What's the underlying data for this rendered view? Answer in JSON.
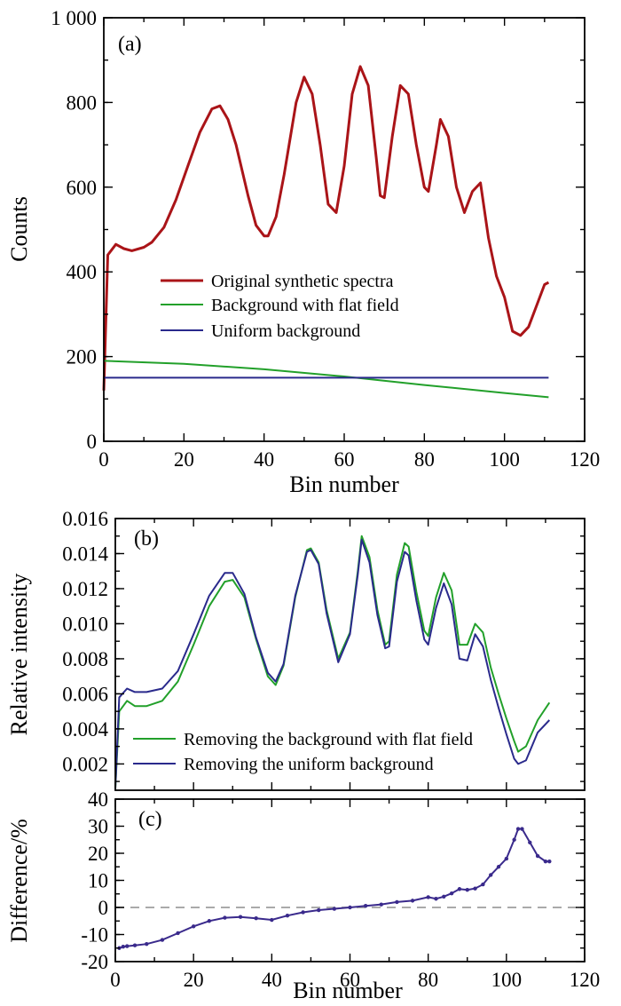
{
  "chart_data": [
    {
      "panel_label": "(a)",
      "type": "line",
      "xlabel": "Bin number",
      "ylabel": "Counts",
      "xlim": [
        0,
        120
      ],
      "ylim": [
        0,
        1000
      ],
      "xticks": [
        0,
        20,
        40,
        60,
        80,
        100,
        120
      ],
      "xtick_labels": [
        "0",
        "20",
        "40",
        "60",
        "80",
        "100",
        "120"
      ],
      "yticks": [
        0,
        200,
        400,
        600,
        800,
        1000
      ],
      "ytick_labels": [
        "0",
        "200",
        "400",
        "600",
        "800",
        "1 000"
      ],
      "legend_position": "middle-left",
      "series": [
        {
          "name": "Original synthetic spectra",
          "color": "#aa1418",
          "x": [
            0,
            1,
            3,
            5,
            7,
            10,
            12,
            15,
            18,
            21,
            24,
            27,
            29,
            31,
            33,
            36,
            38,
            40,
            41,
            43,
            45,
            48,
            50,
            52,
            54,
            56,
            58,
            60,
            62,
            64,
            66,
            68,
            69,
            70,
            72,
            74,
            76,
            78,
            80,
            81,
            83,
            84,
            86,
            88,
            90,
            92,
            94,
            96,
            98,
            100,
            102,
            104,
            106,
            108,
            110,
            111
          ],
          "y": [
            120,
            440,
            465,
            455,
            450,
            458,
            470,
            505,
            570,
            650,
            730,
            785,
            792,
            760,
            700,
            580,
            510,
            485,
            485,
            530,
            630,
            800,
            860,
            820,
            700,
            560,
            540,
            650,
            820,
            885,
            840,
            670,
            580,
            575,
            720,
            840,
            820,
            700,
            600,
            590,
            700,
            760,
            720,
            600,
            540,
            590,
            610,
            480,
            390,
            340,
            260,
            250,
            270,
            320,
            370,
            375
          ]
        },
        {
          "name": "Background with flat field",
          "color": "#22a02a",
          "x": [
            0,
            20,
            40,
            60,
            80,
            100,
            111
          ],
          "y": [
            190,
            183,
            170,
            153,
            133,
            114,
            104
          ]
        },
        {
          "name": "Uniform background",
          "color": "#2a2a8c",
          "x": [
            0,
            111
          ],
          "y": [
            150,
            150
          ]
        }
      ]
    },
    {
      "panel_label": "(b)",
      "type": "line",
      "xlabel": "",
      "ylabel": "Relative intensity",
      "xlim": [
        0,
        120
      ],
      "ylim": [
        0.0005,
        0.016
      ],
      "yticks": [
        0.002,
        0.004,
        0.006,
        0.008,
        0.01,
        0.012,
        0.014,
        0.016
      ],
      "ytick_labels": [
        "0.002",
        "0.004",
        "0.006",
        "0.008",
        "0.010",
        "0.012",
        "0.014",
        "0.016"
      ],
      "legend_position": "bottom-left",
      "series": [
        {
          "name": "Removing the background with flat field",
          "color": "#22a02a",
          "x": [
            0,
            1,
            3,
            5,
            8,
            12,
            16,
            20,
            24,
            28,
            30,
            33,
            36,
            39,
            41,
            43,
            46,
            49,
            50,
            52,
            54,
            57,
            60,
            62,
            63,
            65,
            67,
            69,
            70,
            72,
            74,
            75,
            77,
            79,
            80,
            82,
            84,
            86,
            88,
            90,
            92,
            94,
            96,
            98,
            100,
            102,
            103,
            105,
            108,
            111
          ],
          "y": [
            0.0006,
            0.005,
            0.0056,
            0.0053,
            0.0053,
            0.0056,
            0.0067,
            0.0088,
            0.011,
            0.0124,
            0.0125,
            0.0115,
            0.0091,
            0.007,
            0.0065,
            0.0076,
            0.0115,
            0.0142,
            0.0143,
            0.0135,
            0.0108,
            0.008,
            0.0095,
            0.013,
            0.015,
            0.0138,
            0.0108,
            0.0088,
            0.009,
            0.0128,
            0.0146,
            0.0144,
            0.0118,
            0.0096,
            0.0093,
            0.0115,
            0.0129,
            0.0119,
            0.0088,
            0.0088,
            0.01,
            0.0095,
            0.0075,
            0.006,
            0.0046,
            0.0033,
            0.0027,
            0.003,
            0.0045,
            0.0055
          ]
        },
        {
          "name": "Removing the uniform background",
          "color": "#2a2a8c",
          "x": [
            0,
            1,
            3,
            5,
            8,
            12,
            16,
            20,
            24,
            28,
            30,
            33,
            36,
            39,
            41,
            43,
            46,
            49,
            50,
            52,
            54,
            57,
            60,
            62,
            63,
            65,
            67,
            69,
            70,
            72,
            74,
            75,
            77,
            79,
            80,
            82,
            84,
            86,
            88,
            90,
            92,
            94,
            96,
            98,
            100,
            102,
            103,
            105,
            108,
            111
          ],
          "y": [
            0.0006,
            0.0058,
            0.0063,
            0.0061,
            0.0061,
            0.0063,
            0.0073,
            0.0094,
            0.0116,
            0.0129,
            0.0129,
            0.0117,
            0.0092,
            0.0072,
            0.0067,
            0.0077,
            0.0116,
            0.0141,
            0.0142,
            0.0134,
            0.0106,
            0.0078,
            0.0094,
            0.0128,
            0.0148,
            0.0135,
            0.0105,
            0.0086,
            0.0087,
            0.0124,
            0.0141,
            0.0139,
            0.0113,
            0.0091,
            0.0088,
            0.0109,
            0.0123,
            0.0111,
            0.008,
            0.0079,
            0.0094,
            0.0087,
            0.0068,
            0.0052,
            0.0037,
            0.0023,
            0.002,
            0.0022,
            0.0038,
            0.0045
          ]
        }
      ]
    },
    {
      "panel_label": "(c)",
      "type": "line",
      "xlabel": "Bin number",
      "ylabel": "Difference/%",
      "xlim": [
        0,
        120
      ],
      "ylim": [
        -20,
        40
      ],
      "xticks": [
        0,
        20,
        40,
        60,
        80,
        100,
        120
      ],
      "xtick_labels": [
        "0",
        "20",
        "40",
        "60",
        "80",
        "100",
        "120"
      ],
      "yticks": [
        -20,
        -10,
        0,
        10,
        20,
        30,
        40
      ],
      "ytick_labels": [
        "-20",
        "-10",
        "0",
        "10",
        "20",
        "30",
        "40"
      ],
      "zero_line": {
        "y": 0,
        "style": "dashed",
        "color": "#aaaaaa"
      },
      "series": [
        {
          "name": "",
          "color": "#3a2a8c",
          "marker": "dot",
          "x": [
            1,
            2,
            3,
            5,
            8,
            12,
            16,
            20,
            24,
            28,
            32,
            36,
            40,
            44,
            48,
            52,
            56,
            60,
            64,
            68,
            72,
            76,
            80,
            82,
            84,
            86,
            88,
            90,
            92,
            94,
            96,
            98,
            100,
            102,
            103,
            104,
            106,
            108,
            110,
            111
          ],
          "y": [
            -15,
            -14.5,
            -14.3,
            -14,
            -13.5,
            -12,
            -9.5,
            -7,
            -5,
            -3.8,
            -3.5,
            -4,
            -4.6,
            -3,
            -1.8,
            -1,
            -0.5,
            0,
            0.6,
            1.1,
            2,
            2.5,
            3.8,
            3.2,
            4,
            5.2,
            6.8,
            6.5,
            7,
            8.5,
            12,
            15,
            18,
            25,
            29,
            29,
            24,
            19,
            17,
            17
          ]
        }
      ]
    }
  ]
}
